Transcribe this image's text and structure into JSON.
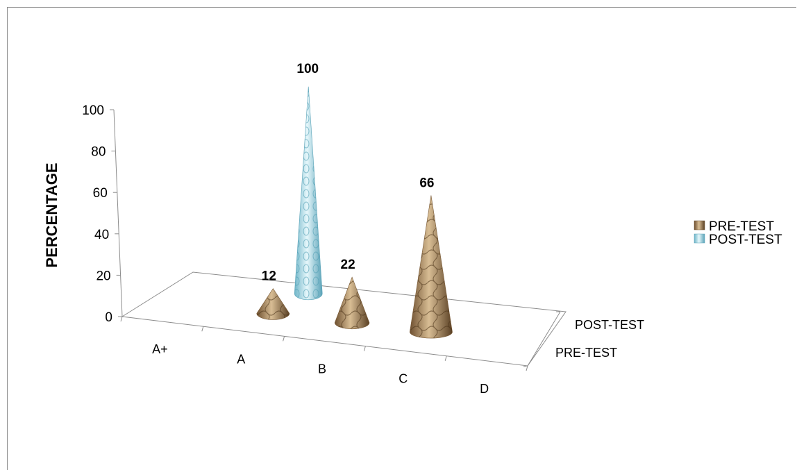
{
  "chart_data": {
    "type": "bar",
    "bar_shape": "cone-3d",
    "categories": [
      "A+",
      "A",
      "B",
      "C",
      "D"
    ],
    "series": [
      {
        "name": "PRE-TEST",
        "values": [
          null,
          12,
          22,
          66,
          null
        ],
        "color": "#b89a72"
      },
      {
        "name": "POST-TEST",
        "values": [
          null,
          100,
          null,
          null,
          null
        ],
        "color": "#9fd6e4"
      }
    ],
    "depth_labels": [
      "POST-TEST",
      "PRE-TEST"
    ],
    "ylabel": "PERCENTAGE",
    "yticks": [
      0,
      20,
      40,
      60,
      80,
      100
    ],
    "ylim": [
      0,
      100
    ],
    "legend": "right",
    "grid": false
  }
}
